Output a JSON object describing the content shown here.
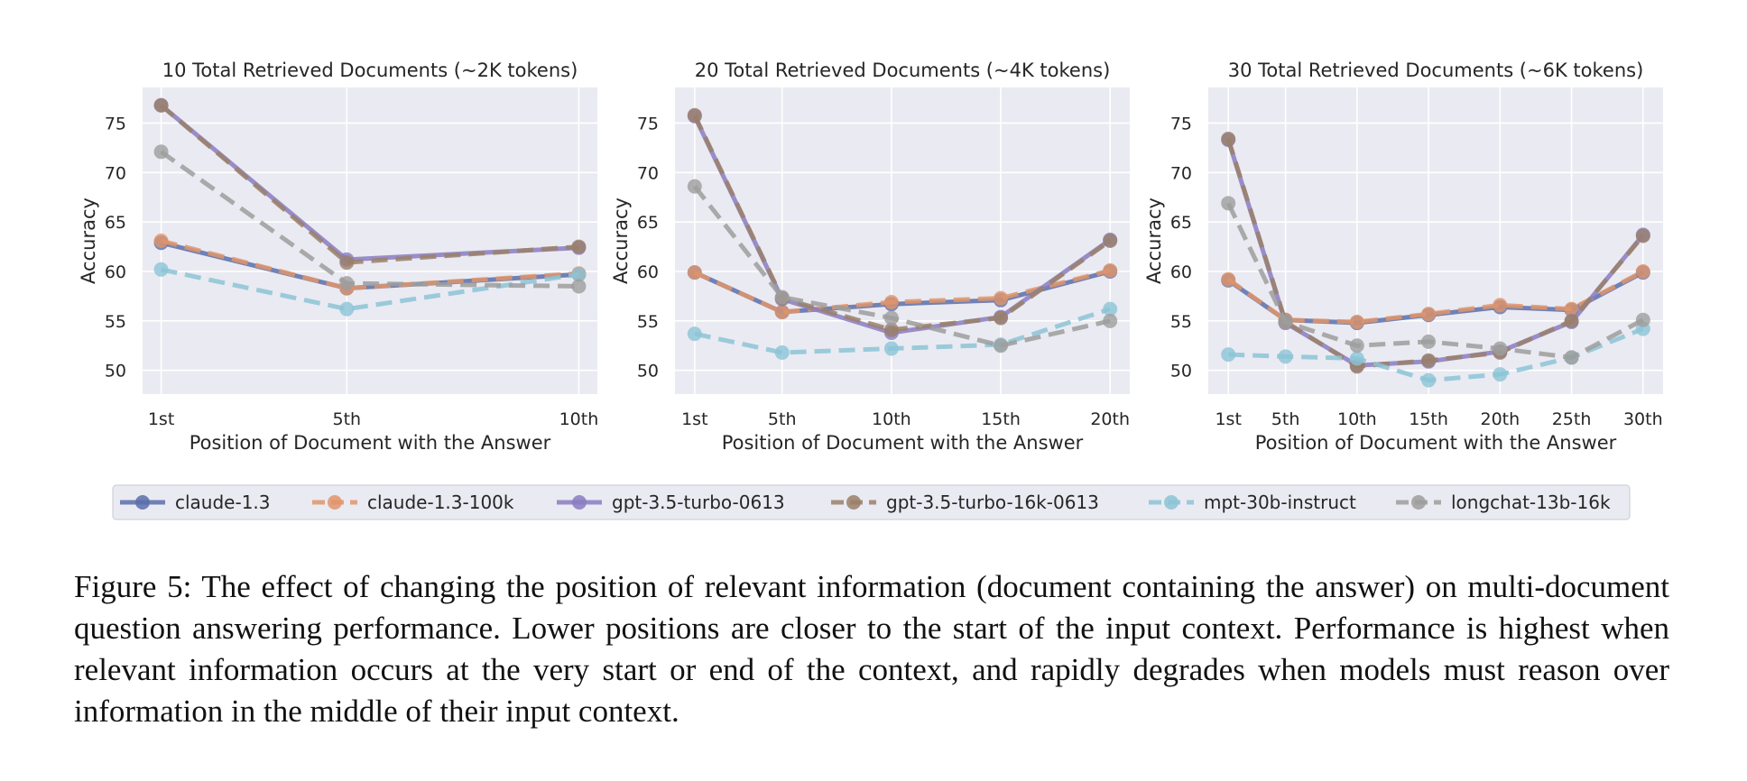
{
  "legend": [
    {
      "name": "claude-1.3",
      "color": "#5b6faa",
      "dash": false
    },
    {
      "name": "claude-1.3-100k",
      "color": "#e0956a",
      "dash": true
    },
    {
      "name": "gpt-3.5-turbo-0613",
      "color": "#8a7cc2",
      "dash": false
    },
    {
      "name": "gpt-3.5-turbo-16k-0613",
      "color": "#9a8069",
      "dash": true
    },
    {
      "name": "mpt-30b-instruct",
      "color": "#8cc4d6",
      "dash": true
    },
    {
      "name": "longchat-13b-16k",
      "color": "#9d9d9d",
      "dash": true
    }
  ],
  "chart_data": [
    {
      "type": "line",
      "title": "10 Total Retrieved Documents (~2K tokens)",
      "xlabel": "Position of Document with the Answer",
      "ylabel": "Accuracy",
      "x": [
        1,
        5,
        10
      ],
      "xticklabels": [
        "1st",
        "5th",
        "10th"
      ],
      "yticks": [
        50,
        55,
        60,
        65,
        70,
        75
      ],
      "xlim": [
        0.6,
        10.4
      ],
      "ylim": [
        47.6,
        78.6
      ],
      "grid": true,
      "series": [
        {
          "name": "claude-1.3",
          "values": [
            62.9,
            58.3,
            59.7
          ]
        },
        {
          "name": "claude-1.3-100k",
          "values": [
            63.1,
            58.3,
            59.8
          ]
        },
        {
          "name": "gpt-3.5-turbo-0613",
          "values": [
            76.8,
            61.2,
            62.4
          ]
        },
        {
          "name": "gpt-3.5-turbo-16k-0613",
          "values": [
            76.8,
            60.9,
            62.5
          ]
        },
        {
          "name": "mpt-30b-instruct",
          "values": [
            60.2,
            56.2,
            59.7
          ]
        },
        {
          "name": "longchat-13b-16k",
          "values": [
            72.1,
            58.8,
            58.5
          ]
        }
      ]
    },
    {
      "type": "line",
      "title": "20 Total Retrieved Documents (~4K tokens)",
      "xlabel": "Position of Document with the Answer",
      "ylabel": "Accuracy",
      "x": [
        1,
        5,
        10,
        15,
        20
      ],
      "xticklabels": [
        "1st",
        "5th",
        "10th",
        "15th",
        "20th"
      ],
      "yticks": [
        50,
        55,
        60,
        65,
        70,
        75
      ],
      "xlim": [
        0.1,
        20.9
      ],
      "ylim": [
        47.6,
        78.6
      ],
      "grid": true,
      "series": [
        {
          "name": "claude-1.3",
          "values": [
            59.9,
            55.9,
            56.7,
            57.1,
            60.0
          ]
        },
        {
          "name": "claude-1.3-100k",
          "values": [
            59.9,
            55.9,
            56.9,
            57.3,
            60.1
          ]
        },
        {
          "name": "gpt-3.5-turbo-0613",
          "values": [
            75.7,
            57.2,
            53.8,
            55.4,
            63.2
          ]
        },
        {
          "name": "gpt-3.5-turbo-16k-0613",
          "values": [
            75.8,
            57.3,
            54.1,
            55.3,
            63.1
          ]
        },
        {
          "name": "mpt-30b-instruct",
          "values": [
            53.7,
            51.8,
            52.2,
            52.6,
            56.2
          ]
        },
        {
          "name": "longchat-13b-16k",
          "values": [
            68.6,
            57.4,
            55.3,
            52.5,
            55.0
          ]
        }
      ]
    },
    {
      "type": "line",
      "title": "30 Total Retrieved Documents (~6K tokens)",
      "xlabel": "Position of Document with the Answer",
      "ylabel": "Accuracy",
      "x": [
        1,
        5,
        10,
        15,
        20,
        25,
        30
      ],
      "xticklabels": [
        "1st",
        "5th",
        "10th",
        "15th",
        "20th",
        "25th",
        "30th"
      ],
      "yticks": [
        50,
        55,
        60,
        65,
        70,
        75
      ],
      "xlim": [
        -0.4,
        31.4
      ],
      "ylim": [
        47.6,
        78.6
      ],
      "grid": true,
      "series": [
        {
          "name": "claude-1.3",
          "values": [
            59.1,
            55.1,
            54.8,
            55.6,
            56.4,
            56.1,
            59.9
          ]
        },
        {
          "name": "claude-1.3-100k",
          "values": [
            59.2,
            55.1,
            54.9,
            55.7,
            56.6,
            56.2,
            60.0
          ]
        },
        {
          "name": "gpt-3.5-turbo-0613",
          "values": [
            73.3,
            54.8,
            50.5,
            50.9,
            51.9,
            54.9,
            63.7
          ]
        },
        {
          "name": "gpt-3.5-turbo-16k-0613",
          "values": [
            73.4,
            54.9,
            50.4,
            51.0,
            51.8,
            55.0,
            63.6
          ]
        },
        {
          "name": "mpt-30b-instruct",
          "values": [
            51.6,
            51.4,
            51.2,
            49.0,
            49.6,
            51.3,
            54.2
          ]
        },
        {
          "name": "longchat-13b-16k",
          "values": [
            66.9,
            54.9,
            52.5,
            52.9,
            52.2,
            51.3,
            55.1
          ]
        }
      ]
    }
  ],
  "caption": "Figure 5: The effect of changing the position of relevant information (document containing the answer) on multi-document question answering performance. Lower positions are closer to the start of the input context. Performance is highest when relevant information occurs at the very start or end of the context, and rapidly degrades when models must reason over information in the middle of their input context."
}
